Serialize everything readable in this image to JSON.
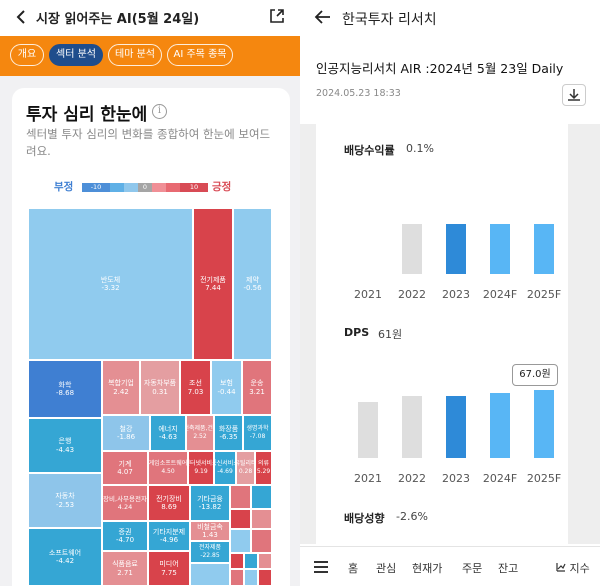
{
  "left": {
    "title": "시장 읽어주는 AI(5월 24일)",
    "tabs": [
      "개요",
      "섹터 분석",
      "테마 분석",
      "AI 주목 종목"
    ],
    "card_title": "투자 심리 한눈에",
    "card_desc": "섹터별 투자 심리의 변화를 종합하여 한눈에 보여드려요.",
    "legend": {
      "neg_label": "부정",
      "pos_label": "긍정",
      "min": "-10",
      "mid": "0",
      "max": "10",
      "colors": [
        "#4d8fd8",
        "#5fb0e6",
        "#8fc7ec",
        "#a5a5a5",
        "#f08f96",
        "#e86a72",
        "#d84b55"
      ]
    },
    "tiles": [
      {
        "name": "반도체",
        "value": "-3.32",
        "color": "#90cbee"
      },
      {
        "name": "전기제품",
        "value": "7.44",
        "color": "#d8434b"
      },
      {
        "name": "제약",
        "value": "-0.56",
        "color": "#90cbee"
      },
      {
        "name": "화학",
        "value": "-8.68",
        "color": "#3f7fd2"
      },
      {
        "name": "복합기업",
        "value": "2.42",
        "color": "#e48f93"
      },
      {
        "name": "자동차부품",
        "value": "0.31",
        "color": "#e49ea1"
      },
      {
        "name": "조선",
        "value": "7.03",
        "color": "#d8434b"
      },
      {
        "name": "보험",
        "value": "-0.44",
        "color": "#90cbee"
      },
      {
        "name": "운송",
        "value": "3.21",
        "color": "#e0757c"
      },
      {
        "name": "은행",
        "value": "-4.43",
        "color": "#35a6d4"
      },
      {
        "name": "철강",
        "value": "-1.86",
        "color": "#8ec5ea"
      },
      {
        "name": "에너지",
        "value": "-4.63",
        "color": "#35a6d4"
      },
      {
        "name": "건설,건축제품,건축자재",
        "value": "2.52",
        "color": "#e48f93"
      },
      {
        "name": "화장품",
        "value": "-6.35",
        "color": "#35a6d4"
      },
      {
        "name": "생명과학",
        "value": "-7.08",
        "color": "#35a6d4"
      },
      {
        "name": "기계",
        "value": "4.07",
        "color": "#e0757c"
      },
      {
        "name": "게임소프트웨어",
        "value": "4.50",
        "color": "#e0757c"
      },
      {
        "name": "인터넷서비스",
        "value": "9.19",
        "color": "#d8434b"
      },
      {
        "name": "통신서비스",
        "value": "-4.69",
        "color": "#35a6d4"
      },
      {
        "name": "유틸리티",
        "value": "0.28",
        "color": "#e49ea1"
      },
      {
        "name": "의류",
        "value": "5.29",
        "color": "#d8434b"
      },
      {
        "name": "자동차",
        "value": "-2.53",
        "color": "#8ec5ea"
      },
      {
        "name": "전자장비,사무용전자제품",
        "value": "4.24",
        "color": "#e0757c"
      },
      {
        "name": "전기장비",
        "value": "8.69",
        "color": "#d8434b"
      },
      {
        "name": "기타금융",
        "value": "-13.82",
        "color": "#35a6d4"
      },
      {
        "name": "증권",
        "value": "-4.70",
        "color": "#35a6d4"
      },
      {
        "name": "기타지분제",
        "value": "-4.96",
        "color": "#35a6d4"
      },
      {
        "name": "비철금속",
        "value": "1.43",
        "color": "#e48f93"
      },
      {
        "name": "소프트웨어",
        "value": "-4.42",
        "color": "#35a6d4"
      },
      {
        "name": "식품음료",
        "value": "2.71",
        "color": "#e48f93"
      },
      {
        "name": "미디어",
        "value": "7.75",
        "color": "#d8434b"
      },
      {
        "name": "전자제품",
        "value": "-22.85",
        "color": "#35a6d4"
      }
    ]
  },
  "right": {
    "title": "한국투자 리서치",
    "report_title": "인공지능리서치 AIR :2024년 5월 23일 Daily",
    "report_date": "2024.05.23 18:33",
    "dividend_yield": {
      "label": "배당수익률",
      "value": "0.1%"
    },
    "dps": {
      "label": "DPS",
      "value": "61원",
      "tooltip": "67.0원"
    },
    "payout": {
      "label": "배당성향",
      "value": "-2.6%"
    },
    "years": [
      "2021",
      "2022",
      "2023",
      "2024F",
      "2025F"
    ],
    "nav": [
      "홈",
      "관심",
      "현재가",
      "주문",
      "잔고",
      "지수"
    ],
    "colors": {
      "gray": "#dedede",
      "blue_dark": "#2e8ad8",
      "blue_light": "#58b6f5"
    }
  },
  "chart_data": [
    {
      "type": "bar",
      "ylabel": "",
      "title": "배당수익률",
      "categories": [
        "2021",
        "2022",
        "2023",
        "2024F",
        "2025F"
      ],
      "values": [
        0,
        0.1,
        0.1,
        0.1,
        0.1
      ]
    },
    {
      "type": "bar",
      "ylabel": "",
      "title": "DPS",
      "categories": [
        "2021",
        "2022",
        "2023",
        "2024F",
        "2025F"
      ],
      "values": [
        55,
        61,
        61,
        64,
        67
      ]
    }
  ]
}
